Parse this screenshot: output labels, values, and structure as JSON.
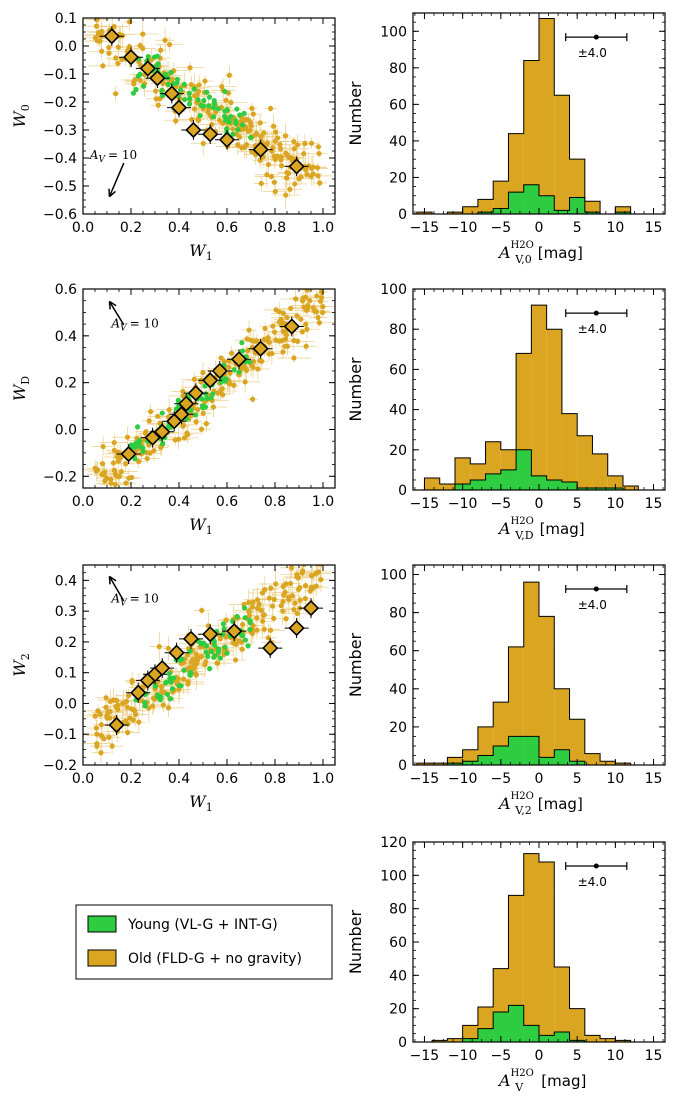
{
  "colors": {
    "young": "#2ecc40",
    "old": "#daa520",
    "outline": "#000000"
  },
  "legend": {
    "young_label": "Young (VL-G + INT-G)",
    "old_label": "Old (FLD-G + no gravity)"
  },
  "chart_data": [
    {
      "type": "scatter",
      "id": "scatter-w0",
      "title": "",
      "xlabel": "W",
      "xlabel_sub": "1",
      "ylabel": "W",
      "ylabel_sub": "0",
      "xlim": [
        0.0,
        1.05
      ],
      "ylim": [
        -0.6,
        0.1
      ],
      "xticks": [
        0.0,
        0.2,
        0.4,
        0.6,
        0.8,
        1.0
      ],
      "yticks": [
        -0.6,
        -0.5,
        -0.4,
        -0.3,
        -0.2,
        -0.1,
        0.0,
        0.1
      ],
      "annotation": "A",
      "annotation_sub": "V",
      "annotation_value": "= 10",
      "reddening_vector": {
        "dx": -0.06,
        "dy": -0.12
      },
      "trend": {
        "slope": -0.55,
        "intercept": 0.07,
        "scatter": 0.05
      },
      "young_points": 70,
      "old_points": 240,
      "binned_means": {
        "x": [
          0.12,
          0.2,
          0.27,
          0.31,
          0.37,
          0.4,
          0.46,
          0.53,
          0.6,
          0.74,
          0.89
        ],
        "y": [
          0.035,
          -0.04,
          -0.08,
          -0.115,
          -0.17,
          -0.22,
          -0.3,
          -0.315,
          -0.335,
          -0.37,
          -0.43
        ]
      }
    },
    {
      "type": "bar",
      "id": "hist-av0",
      "xlabel": "A",
      "xlabel_sub": "V,0",
      "xlabel_sup": "H2O",
      "xlabel_unit": "[mag]",
      "ylabel": "Number",
      "xlim": [
        -16.5,
        16.5
      ],
      "ylim": [
        0,
        110
      ],
      "xticks": [
        -15,
        -10,
        -5,
        0,
        5,
        10,
        15
      ],
      "yticks": [
        0,
        20,
        40,
        60,
        80,
        100
      ],
      "bin_edges": [
        -16,
        -14,
        -12,
        -10,
        -8,
        -6,
        -4,
        -2,
        0,
        2,
        4,
        6,
        8,
        10,
        12
      ],
      "series": [
        {
          "name": "Old (FLD-G + no gravity)",
          "values": [
            1,
            0,
            1,
            4,
            8,
            18,
            44,
            84,
            107,
            65,
            30,
            7,
            0,
            4
          ]
        },
        {
          "name": "Young (VL-G + INT-G)",
          "values": [
            0,
            0,
            0,
            0,
            1,
            3,
            12,
            16,
            10,
            2,
            9,
            1,
            0,
            1
          ]
        }
      ],
      "errorbar_label": "±4.0",
      "errorbar_halfwidth": 4.0
    },
    {
      "type": "scatter",
      "id": "scatter-wd",
      "xlabel": "W",
      "xlabel_sub": "1",
      "ylabel": "W",
      "ylabel_sub": "D",
      "xlim": [
        0.0,
        1.05
      ],
      "ylim": [
        -0.25,
        0.6
      ],
      "xticks": [
        0.0,
        0.2,
        0.4,
        0.6,
        0.8,
        1.0
      ],
      "yticks": [
        -0.2,
        0.0,
        0.2,
        0.4,
        0.6
      ],
      "annotation": "A",
      "annotation_sub": "V",
      "annotation_value": "= 10",
      "reddening_vector": {
        "dx": -0.06,
        "dy": 0.1
      },
      "trend": {
        "slope": 0.83,
        "intercept": -0.27,
        "scatter": 0.06
      },
      "young_points": 70,
      "old_points": 240,
      "binned_means": {
        "x": [
          0.19,
          0.29,
          0.33,
          0.38,
          0.41,
          0.43,
          0.47,
          0.53,
          0.57,
          0.65,
          0.74,
          0.87
        ],
        "y": [
          -0.105,
          -0.035,
          -0.01,
          0.035,
          0.065,
          0.11,
          0.155,
          0.21,
          0.25,
          0.3,
          0.345,
          0.44
        ]
      }
    },
    {
      "type": "bar",
      "id": "hist-avd",
      "xlabel": "A",
      "xlabel_sub": "V,D",
      "xlabel_sup": "H2O",
      "xlabel_unit": "[mag]",
      "ylabel": "Number",
      "xlim": [
        -16.5,
        16.5
      ],
      "ylim": [
        0,
        100
      ],
      "xticks": [
        -15,
        -10,
        -5,
        0,
        5,
        10,
        15
      ],
      "yticks": [
        0,
        20,
        40,
        60,
        80,
        100
      ],
      "bin_edges": [
        -15,
        -13,
        -11,
        -9,
        -7,
        -5,
        -3,
        -1,
        1,
        3,
        5,
        7,
        9,
        11,
        13
      ],
      "series": [
        {
          "name": "Old (FLD-G + no gravity)",
          "values": [
            6,
            3,
            16,
            13,
            24,
            20,
            68,
            92,
            80,
            38,
            27,
            18,
            7,
            2
          ]
        },
        {
          "name": "Young (VL-G + INT-G)",
          "values": [
            0,
            0,
            3,
            5,
            8,
            10,
            20,
            7,
            5,
            4,
            1,
            1,
            1,
            0
          ]
        }
      ],
      "errorbar_label": "±4.0",
      "errorbar_halfwidth": 4.0
    },
    {
      "type": "scatter",
      "id": "scatter-w2",
      "xlabel": "W",
      "xlabel_sub": "1",
      "ylabel": "W",
      "ylabel_sub": "2",
      "xlim": [
        0.0,
        1.05
      ],
      "ylim": [
        -0.2,
        0.45
      ],
      "xticks": [
        0.0,
        0.2,
        0.4,
        0.6,
        0.8,
        1.0
      ],
      "yticks": [
        -0.2,
        -0.1,
        0.0,
        0.1,
        0.2,
        0.3,
        0.4
      ],
      "annotation": "A",
      "annotation_sub": "V",
      "annotation_value": "= 10",
      "reddening_vector": {
        "dx": -0.06,
        "dy": 0.08
      },
      "trend": {
        "slope": 0.55,
        "intercept": -0.12,
        "scatter": 0.045
      },
      "young_points": 70,
      "old_points": 240,
      "binned_means": {
        "x": [
          0.14,
          0.23,
          0.27,
          0.3,
          0.33,
          0.39,
          0.45,
          0.53,
          0.63,
          0.78,
          0.89,
          0.95
        ],
        "y": [
          -0.07,
          0.035,
          0.075,
          0.095,
          0.115,
          0.165,
          0.21,
          0.225,
          0.235,
          0.18,
          0.245,
          0.31
        ]
      }
    },
    {
      "type": "bar",
      "id": "hist-av2",
      "xlabel": "A",
      "xlabel_sub": "V,2",
      "xlabel_sup": "H2O",
      "xlabel_unit": "[mag]",
      "ylabel": "Number",
      "xlim": [
        -16.5,
        16.5
      ],
      "ylim": [
        0,
        105
      ],
      "xticks": [
        -15,
        -10,
        -5,
        0,
        5,
        10,
        15
      ],
      "yticks": [
        0,
        20,
        40,
        60,
        80,
        100
      ],
      "bin_edges": [
        -16,
        -14,
        -12,
        -10,
        -8,
        -6,
        -4,
        -2,
        0,
        2,
        4,
        6,
        8,
        10,
        12
      ],
      "series": [
        {
          "name": "Old (FLD-G + no gravity)",
          "values": [
            1,
            1,
            4,
            8,
            20,
            33,
            62,
            96,
            78,
            40,
            24,
            6,
            2,
            1
          ]
        },
        {
          "name": "Young (VL-G + INT-G)",
          "values": [
            0,
            0,
            1,
            2,
            5,
            10,
            15,
            15,
            4,
            8,
            2,
            0,
            0,
            0
          ]
        }
      ],
      "errorbar_label": "±4.0",
      "errorbar_halfwidth": 4.0
    },
    {
      "type": "bar",
      "id": "hist-av",
      "xlabel": "A",
      "xlabel_sub": "V",
      "xlabel_sup": "H2O",
      "xlabel_unit": "[mag]",
      "ylabel": "Number",
      "xlim": [
        -16.5,
        16.5
      ],
      "ylim": [
        0,
        120
      ],
      "xticks": [
        -15,
        -10,
        -5,
        0,
        5,
        10,
        15
      ],
      "yticks": [
        0,
        20,
        40,
        60,
        80,
        100,
        120
      ],
      "bin_edges": [
        -14,
        -12,
        -10,
        -8,
        -6,
        -4,
        -2,
        0,
        2,
        4,
        6,
        8,
        10,
        12
      ],
      "series": [
        {
          "name": "Old (FLD-G + no gravity)",
          "values": [
            1,
            2,
            10,
            21,
            44,
            88,
            113,
            108,
            45,
            20,
            4,
            2,
            1
          ]
        },
        {
          "name": "Young (VL-G + INT-G)",
          "values": [
            0,
            0,
            2,
            8,
            18,
            22,
            10,
            4,
            6,
            1,
            0,
            0,
            0
          ]
        }
      ],
      "errorbar_label": "±4.0",
      "errorbar_halfwidth": 4.0
    }
  ]
}
